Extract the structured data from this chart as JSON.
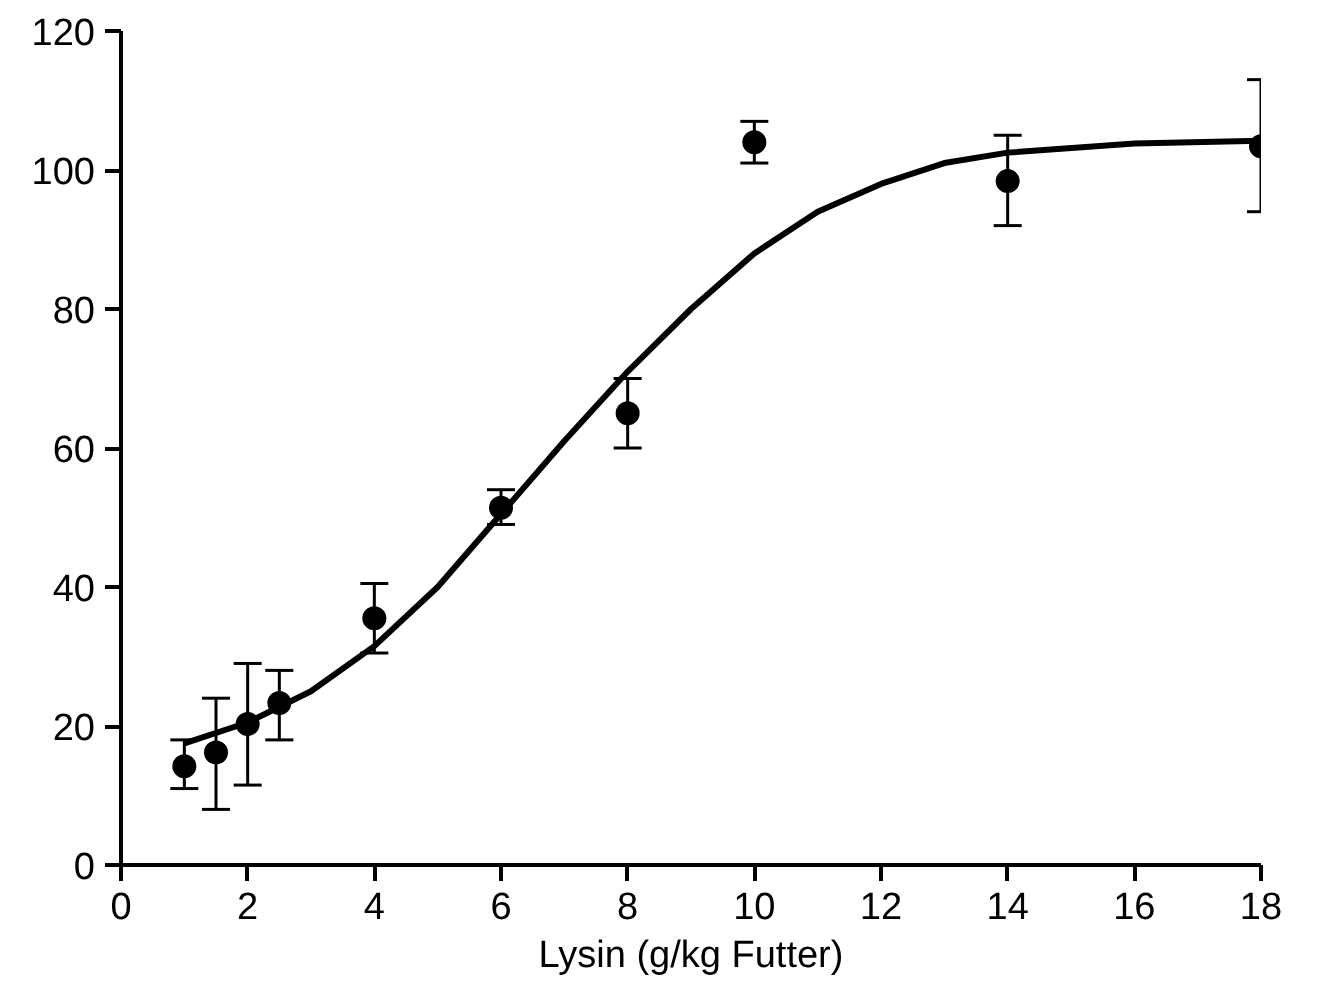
{
  "chart_data": {
    "type": "scatter",
    "xlabel": "Lysin (g/kg Futter)",
    "xlim": [
      0,
      18
    ],
    "ylim": [
      0,
      120
    ],
    "xticks": [
      0,
      2,
      4,
      6,
      8,
      10,
      12,
      14,
      16,
      18
    ],
    "yticks": [
      0,
      20,
      40,
      60,
      80,
      100,
      120
    ],
    "grid": false,
    "marker": "circle",
    "series": [
      {
        "color": "#000000",
        "x": [
          1,
          1.5,
          2,
          2.5,
          4,
          6,
          8,
          10,
          14,
          18
        ],
        "values": [
          14.2,
          16.2,
          20.3,
          23.3,
          35.5,
          51.4,
          65,
          104,
          98.4,
          103.4
        ],
        "errors": [
          [
            11,
            18
          ],
          [
            8,
            24
          ],
          [
            11.5,
            29
          ],
          [
            18,
            28
          ],
          [
            30.5,
            40.5
          ],
          [
            49,
            54
          ],
          [
            60,
            70
          ],
          [
            101,
            107
          ],
          [
            92,
            105
          ],
          [
            94,
            113
          ]
        ]
      },
      {
        "type": "line",
        "color": "#000000",
        "marker": "none",
        "x": [
          1,
          2,
          3,
          4,
          5,
          6,
          7,
          8,
          9,
          10,
          11,
          12,
          13,
          14,
          16,
          18
        ],
        "values": [
          17.5,
          20.5,
          25,
          31.5,
          40,
          50.5,
          61,
          71,
          80,
          88,
          94,
          98,
          101,
          102.5,
          103.8,
          104.2
        ]
      }
    ]
  }
}
